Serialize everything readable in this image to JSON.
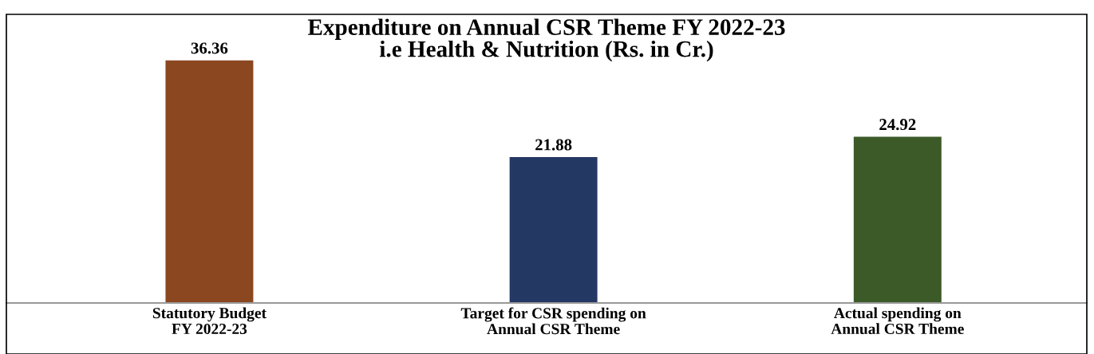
{
  "chart_data": {
    "type": "bar",
    "title": "Expenditure on Annual CSR Theme FY 2022-23\ni.e Health & Nutrition (Rs. in Cr.)",
    "categories": [
      "Statutory Budget\nFY 2022-23",
      "Target for CSR spending on\nAnnual CSR Theme",
      "Actual spending on\nAnnual CSR Theme"
    ],
    "values": [
      36.36,
      21.88,
      24.92
    ],
    "colors": [
      "#8b4720",
      "#233863",
      "#3c5a28"
    ],
    "data_labels": true,
    "grid": false,
    "tick_labels": "x"
  }
}
